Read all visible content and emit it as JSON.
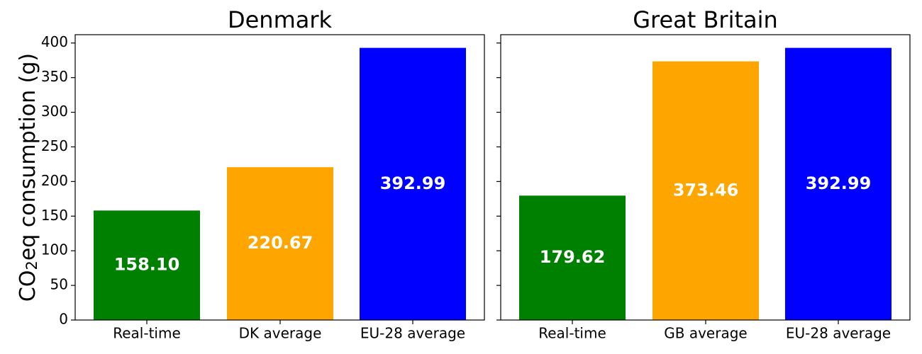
{
  "chart_data": [
    {
      "type": "bar",
      "title": "Denmark",
      "ylabel": "CO2eq consumption (g)",
      "categories": [
        "Real-time",
        "DK average",
        "EU-28 average"
      ],
      "values": [
        158.1,
        220.67,
        392.99
      ],
      "value_labels": [
        "158.10",
        "220.67",
        "392.99"
      ],
      "colors": [
        "#008000",
        "#FFA500",
        "#0000FF"
      ],
      "ylim": [
        0,
        412
      ],
      "yticks": [
        0,
        50,
        100,
        150,
        200,
        250,
        300,
        350,
        400
      ],
      "ytick_labels": [
        "0",
        "50",
        "100",
        "150",
        "200",
        "250",
        "300",
        "350",
        "400"
      ],
      "grid": false
    },
    {
      "type": "bar",
      "title": "Great Britain",
      "categories": [
        "Real-time",
        "GB average",
        "EU-28 average"
      ],
      "values": [
        179.62,
        373.46,
        392.99
      ],
      "value_labels": [
        "179.62",
        "373.46",
        "392.99"
      ],
      "colors": [
        "#008000",
        "#FFA500",
        "#0000FF"
      ],
      "ylim": [
        0,
        412
      ],
      "yticks": [
        0,
        50,
        100,
        150,
        200,
        250,
        300,
        350,
        400
      ],
      "grid": false
    }
  ]
}
